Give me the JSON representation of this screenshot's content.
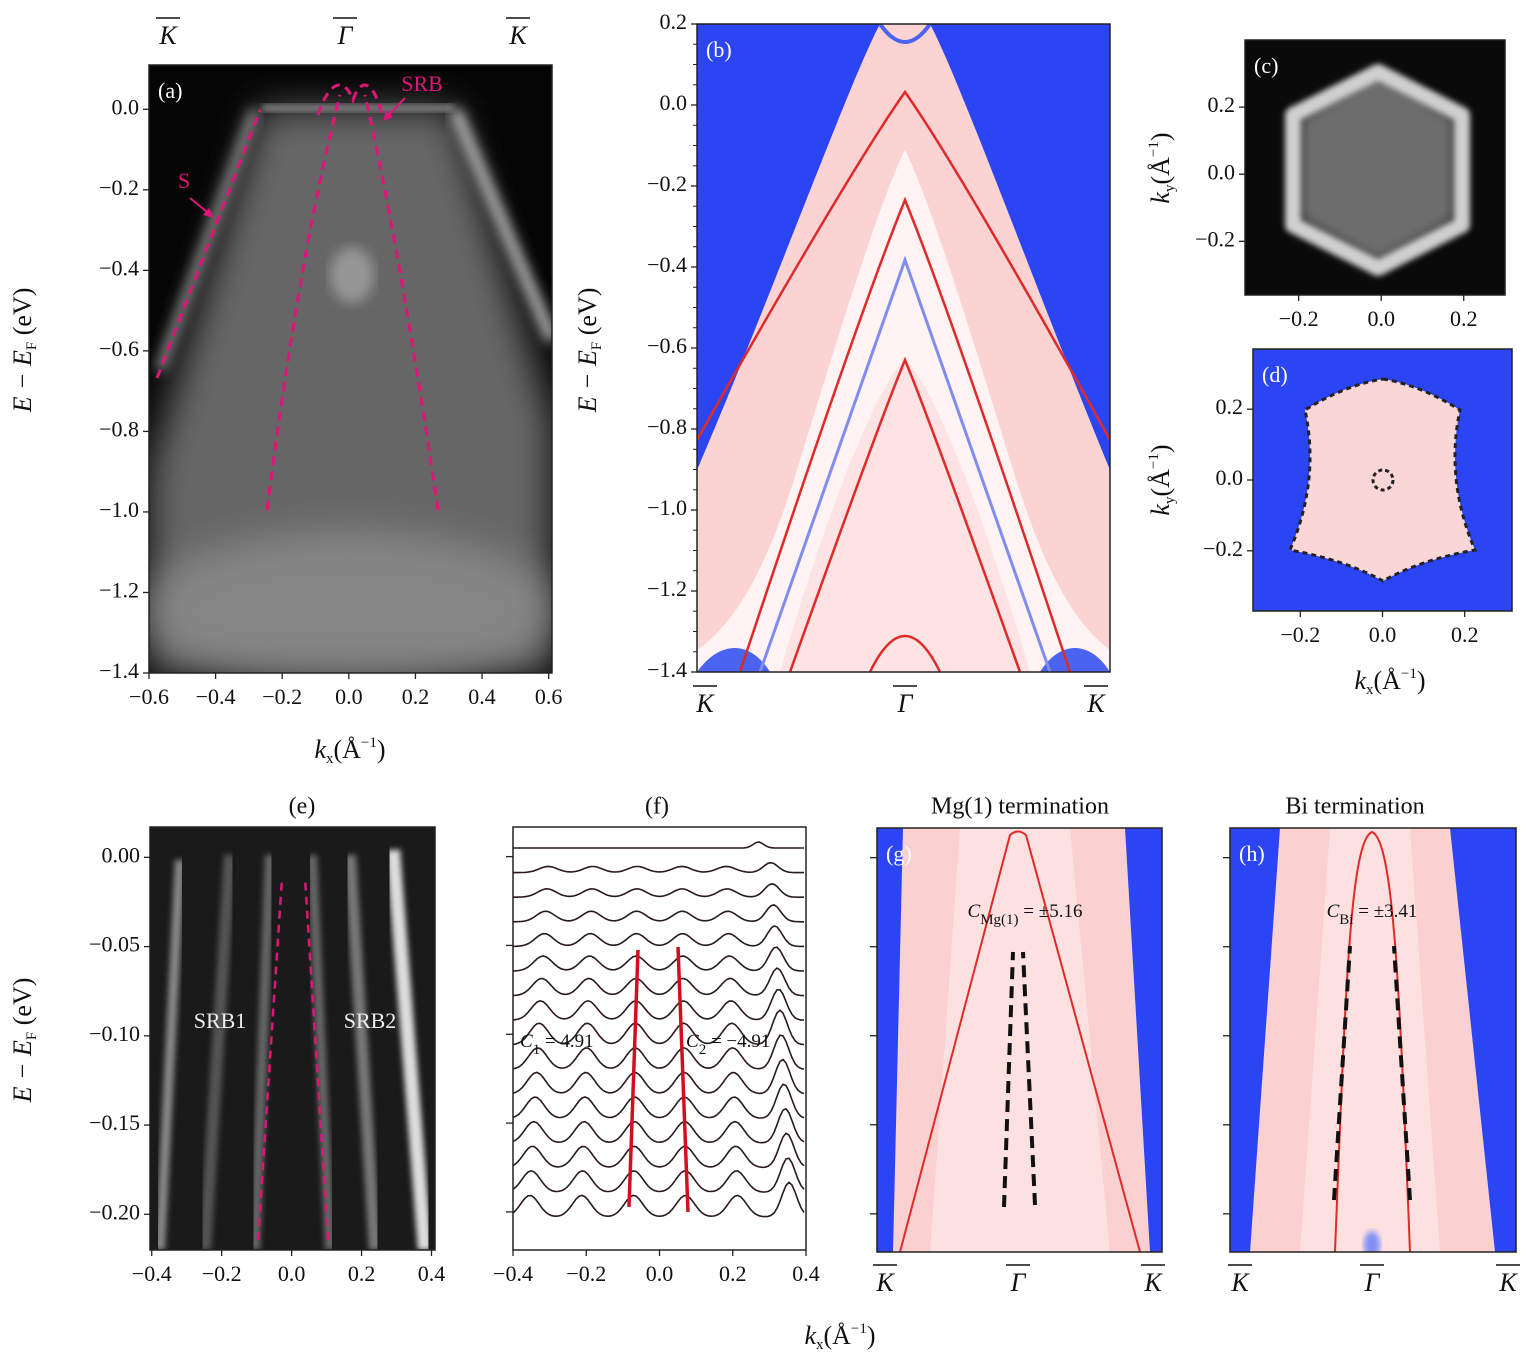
{
  "figure": {
    "xlabel": [
      "k",
      "x",
      "(Å",
      "−1",
      ")"
    ]
  },
  "chart_data": [
    {
      "type": "image",
      "colormap": "gray",
      "label": "(a)",
      "xlim": [
        -0.6,
        0.61
      ],
      "ylim": [
        -1.4,
        0.11
      ],
      "xticks": [
        {
          "value": -0.6,
          "label": "−0.6"
        },
        {
          "value": -0.4,
          "label": "−0.4"
        },
        {
          "value": -0.2,
          "label": "−0.2"
        },
        {
          "value": 0,
          "label": "0.0"
        },
        0.2,
        0.4,
        0.6
      ],
      "yticks": [
        {
          "value": 0,
          "label": "0.0"
        },
        {
          "value": -0.2,
          "label": "−0.2"
        },
        {
          "value": -0.4,
          "label": "−0.4"
        },
        {
          "value": -0.6,
          "label": "−0.6"
        },
        {
          "value": -0.8,
          "label": "−0.8"
        },
        {
          "value": -1,
          "label": "−1.0"
        },
        {
          "value": -1.2,
          "label": "−1.2"
        },
        {
          "value": -1.4,
          "label": "−1.4"
        }
      ],
      "sym_labels": [
        "K",
        "Γ",
        "K"
      ],
      "xlabel": [
        "k",
        "x",
        "(Å",
        "−1",
        ")"
      ],
      "ylabel": [
        "E − E",
        "F",
        " (eV)"
      ],
      "annotations": [
        "S",
        "SRB"
      ]
    },
    {
      "type": "image",
      "colormap": "bwr",
      "label": "(b)",
      "ylim": [
        -1.4,
        0.2
      ],
      "yticks": [
        0.2,
        {
          "value": 0,
          "label": "0.0"
        },
        {
          "value": -0.2,
          "label": "−0.2"
        },
        {
          "value": -0.4,
          "label": "−0.4"
        },
        {
          "value": -0.6,
          "label": "−0.6"
        },
        {
          "value": -0.8,
          "label": "−0.8"
        },
        {
          "value": -1,
          "label": "−1.0"
        },
        {
          "value": -1.2,
          "label": "−1.2"
        },
        {
          "value": -1.4,
          "label": "−1.4"
        }
      ],
      "sym_labels": [
        "K",
        "Γ",
        "K"
      ],
      "ylabel": [
        "E − E",
        "F",
        " (eV)"
      ]
    },
    {
      "type": "image",
      "colormap": "gray",
      "label": "(c)",
      "xlim": [
        -0.33,
        0.3
      ],
      "ylim": [
        -0.36,
        0.4
      ],
      "xticks": [
        {
          "value": -0.2,
          "label": "−0.2"
        },
        {
          "value": 0,
          "label": "0.0"
        },
        0.2
      ],
      "yticks": [
        0.2,
        {
          "value": 0,
          "label": "0.0"
        },
        {
          "value": -0.2,
          "label": "−0.2"
        }
      ],
      "ylabel": [
        "k",
        "y",
        "(Å",
        "−1",
        ")"
      ]
    },
    {
      "type": "image",
      "colormap": "bwr",
      "label": "(d)",
      "xlim": [
        -0.315,
        0.315
      ],
      "ylim": [
        -0.37,
        0.37
      ],
      "xticks": [
        {
          "value": -0.2,
          "label": "−0.2"
        },
        {
          "value": 0,
          "label": "0.0"
        },
        0.2
      ],
      "yticks": [
        0.2,
        {
          "value": 0,
          "label": "0.0"
        },
        {
          "value": -0.2,
          "label": "−0.2"
        }
      ],
      "xlabel": [
        "k",
        "x",
        "(Å",
        "−1",
        ")"
      ],
      "ylabel": [
        "k",
        "y",
        "(Å",
        "−1",
        ")"
      ]
    },
    {
      "type": "image",
      "colormap": "gray",
      "title": "(e)",
      "xlim": [
        -0.405,
        0.41
      ],
      "ylim": [
        -0.22,
        0.017
      ],
      "xticks": [
        {
          "value": -0.4,
          "label": "−0.4"
        },
        {
          "value": -0.2,
          "label": "−0.2"
        },
        {
          "value": 0,
          "label": "0.0"
        },
        0.2,
        0.4
      ],
      "yticks": [
        {
          "value": 0,
          "label": "0.00"
        },
        {
          "value": -0.05,
          "label": "−0.05"
        },
        {
          "value": -0.1,
          "label": "−0.10"
        },
        {
          "value": -0.15,
          "label": "−0.15"
        },
        {
          "value": -0.2,
          "label": "−0.20"
        }
      ],
      "ylabel": [
        "E − E",
        "F",
        " (eV)"
      ],
      "annotations": [
        "SRB1",
        "SRB2"
      ]
    },
    {
      "type": "curves",
      "colormap": "none",
      "title": "(f)",
      "xlim": [
        -0.4,
        0.4
      ],
      "xticks": [
        {
          "value": -0.4,
          "label": "−0.4"
        },
        {
          "value": -0.2,
          "label": "−0.2"
        },
        {
          "value": 0,
          "label": "0.0"
        },
        0.2,
        0.4
      ],
      "annotations": [
        [
          "C",
          "1",
          " = 4.91"
        ],
        [
          "C",
          "2",
          " = −4.91"
        ]
      ]
    },
    {
      "type": "image",
      "colormap": "bwr",
      "title": "Mg(1) termination",
      "label": "(g)",
      "sym_labels": [
        "K",
        "Γ",
        "K"
      ],
      "annotations": [
        [
          "C",
          "Mg(1)",
          " = ±5.16"
        ]
      ]
    },
    {
      "type": "image",
      "colormap": "bwr",
      "title": "Bi termination",
      "label": "(h)",
      "sym_labels": [
        "K",
        "Γ",
        "K"
      ],
      "annotations": [
        [
          "C",
          "Bi",
          " = ±3.41"
        ]
      ]
    }
  ]
}
